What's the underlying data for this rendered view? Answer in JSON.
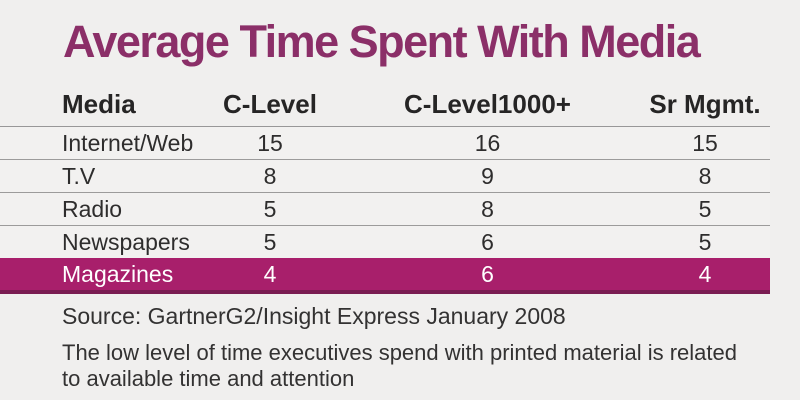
{
  "title": "Average Time Spent With Media",
  "table": {
    "headers": [
      "Media",
      "C-Level",
      "C-Level1000+",
      "Sr Mgmt."
    ],
    "rows": [
      {
        "media": "Internet/Web",
        "c_level": "15",
        "c_level_1000": "16",
        "sr_mgmt": "15"
      },
      {
        "media": "T.V",
        "c_level": "8",
        "c_level_1000": "9",
        "sr_mgmt": "8"
      },
      {
        "media": "Radio",
        "c_level": "5",
        "c_level_1000": "8",
        "sr_mgmt": "5"
      },
      {
        "media": "Newspapers",
        "c_level": "5",
        "c_level_1000": "6",
        "sr_mgmt": "5"
      },
      {
        "media": "Magazines",
        "c_level": "4",
        "c_level_1000": "6",
        "sr_mgmt": "4"
      }
    ],
    "highlighted_row": "Magazines"
  },
  "source": "Source: GartnerG2/Insight Express January 2008",
  "note_lines": [
    "The low level of time executives spend with printed material is related",
    "to available time and attention"
  ],
  "colors": {
    "background": "#f0efee",
    "accent_title": "#8b2f68",
    "highlight_row": "#a81f6b",
    "highlight_row_border": "#7a1c52",
    "text": "#2e2d2d",
    "divider": "#9c9b9b"
  },
  "chart_data": {
    "type": "table",
    "title": "Average Time Spent With Media",
    "columns": [
      "Media",
      "C-Level",
      "C-Level1000+",
      "Sr Mgmt."
    ],
    "rows": [
      [
        "Internet/Web",
        15,
        16,
        15
      ],
      [
        "T.V",
        8,
        9,
        8
      ],
      [
        "Radio",
        5,
        8,
        5
      ],
      [
        "Newspapers",
        5,
        6,
        5
      ],
      [
        "Magazines",
        4,
        6,
        4
      ]
    ],
    "highlighted_row": "Magazines",
    "source": "Source: GartnerG2/Insight Express January 2008",
    "note": "The low level of time executives spend with printed material is related to available time and attention"
  }
}
